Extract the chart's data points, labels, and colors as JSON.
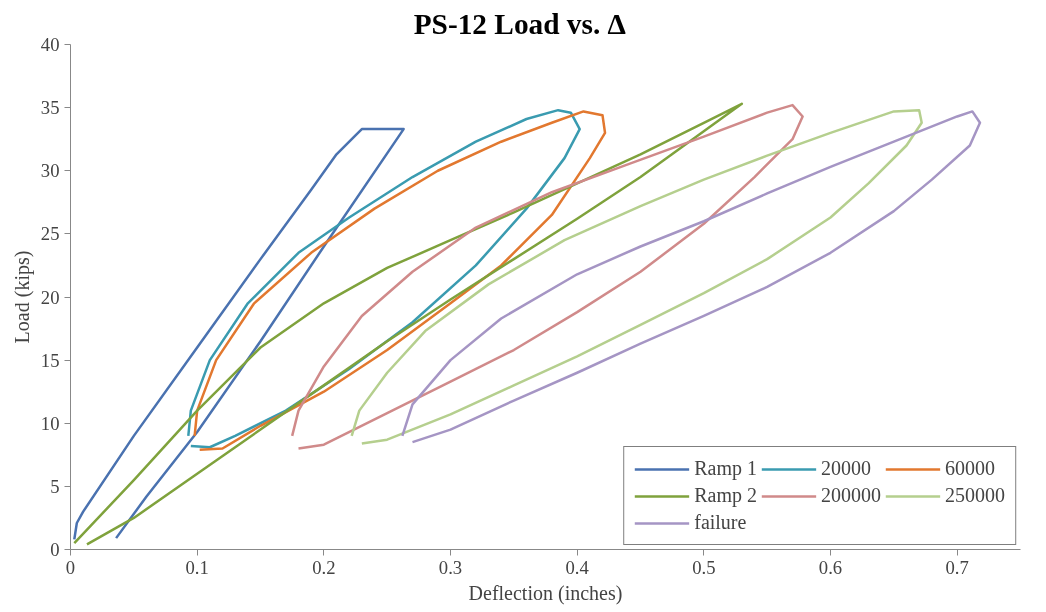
{
  "chart_data": {
    "type": "line",
    "title": "PS-12        Load vs. Δ",
    "xlabel": "Deflection (inches)",
    "ylabel": "Load (kips)",
    "xlim": [
      0,
      0.75
    ],
    "xticks": [
      0,
      0.1,
      0.2,
      0.3,
      0.4,
      0.5,
      0.6,
      0.7
    ],
    "ylim": [
      0,
      40
    ],
    "yticks": [
      0,
      5,
      10,
      15,
      20,
      25,
      30,
      35,
      40
    ],
    "grid": false,
    "legend": "bottom right",
    "series": [
      {
        "name": "Ramp 1",
        "color": "#4a72b0",
        "x": [
          0.003,
          0.005,
          0.01,
          0.05,
          0.1,
          0.15,
          0.19,
          0.21,
          0.225,
          0.23,
          0.245,
          0.263,
          0.2,
          0.15,
          0.1,
          0.06,
          0.036
        ],
        "values": [
          0.8,
          2.1,
          3,
          9,
          16,
          23,
          28.5,
          31.3,
          32.8,
          33.3,
          33.3,
          33.3,
          24,
          16.5,
          9.3,
          4.2,
          0.9
        ]
      },
      {
        "name": "20000",
        "color": "#3a9bb0",
        "x": [
          0.093,
          0.095,
          0.11,
          0.14,
          0.18,
          0.22,
          0.27,
          0.32,
          0.36,
          0.385,
          0.395,
          0.402,
          0.39,
          0.36,
          0.32,
          0.27,
          0.22,
          0.17,
          0.13,
          0.11,
          0.095
        ],
        "values": [
          9,
          11,
          15,
          19.5,
          23.5,
          26.3,
          29.5,
          32.3,
          34.1,
          34.8,
          34.6,
          33.3,
          31,
          27,
          22.5,
          18,
          14.3,
          11,
          9,
          8.1,
          8.2
        ]
      },
      {
        "name": "60000",
        "color": "#e2782f",
        "x": [
          0.098,
          0.1,
          0.115,
          0.145,
          0.19,
          0.24,
          0.29,
          0.34,
          0.38,
          0.405,
          0.42,
          0.422,
          0.41,
          0.38,
          0.34,
          0.3,
          0.25,
          0.2,
          0.15,
          0.12,
          0.102
        ],
        "values": [
          9,
          11,
          15,
          19.5,
          23.5,
          27,
          30,
          32.3,
          33.8,
          34.7,
          34.4,
          33,
          31,
          26.5,
          22.5,
          19.5,
          15.8,
          12.5,
          9.8,
          8,
          7.9
        ]
      },
      {
        "name": "Ramp 2",
        "color": "#7fa23c",
        "x": [
          0.003,
          0.05,
          0.1,
          0.15,
          0.2,
          0.25,
          0.3,
          0.35,
          0.4,
          0.45,
          0.5,
          0.53,
          0.45,
          0.4,
          0.35,
          0.3,
          0.25,
          0.2,
          0.15,
          0.1,
          0.05,
          0.013
        ],
        "values": [
          0.5,
          5.5,
          11,
          16,
          19.5,
          22.3,
          24.5,
          26.7,
          29,
          31.3,
          33.8,
          35.3,
          29.5,
          26.2,
          23,
          19.8,
          16.5,
          13,
          9.5,
          6,
          2.5,
          0.4
        ]
      },
      {
        "name": "200000",
        "color": "#d08a8a",
        "x": [
          0.175,
          0.18,
          0.2,
          0.23,
          0.27,
          0.32,
          0.38,
          0.44,
          0.5,
          0.55,
          0.57,
          0.578,
          0.57,
          0.54,
          0.5,
          0.45,
          0.4,
          0.35,
          0.3,
          0.25,
          0.2,
          0.18
        ],
        "values": [
          9,
          11,
          14.5,
          18.5,
          22,
          25.5,
          28.3,
          30.5,
          32.7,
          34.6,
          35.2,
          34.3,
          32.5,
          29.5,
          25.8,
          22,
          18.8,
          15.8,
          13.3,
          10.8,
          8.3,
          8
        ]
      },
      {
        "name": "250000",
        "color": "#b5cf8e",
        "x": [
          0.222,
          0.228,
          0.25,
          0.28,
          0.33,
          0.39,
          0.45,
          0.5,
          0.55,
          0.6,
          0.65,
          0.67,
          0.672,
          0.66,
          0.63,
          0.6,
          0.55,
          0.5,
          0.45,
          0.4,
          0.35,
          0.3,
          0.25,
          0.23
        ],
        "values": [
          9,
          11,
          14,
          17.3,
          21,
          24.5,
          27.2,
          29.3,
          31.2,
          33,
          34.7,
          34.8,
          33.8,
          32,
          29,
          26.3,
          23,
          20.3,
          17.8,
          15.3,
          13,
          10.7,
          8.7,
          8.4
        ]
      },
      {
        "name": "failure",
        "color": "#a595c4",
        "x": [
          0.262,
          0.27,
          0.3,
          0.34,
          0.4,
          0.45,
          0.5,
          0.55,
          0.6,
          0.65,
          0.7,
          0.712,
          0.718,
          0.71,
          0.68,
          0.65,
          0.6,
          0.55,
          0.5,
          0.45,
          0.4,
          0.35,
          0.3,
          0.27
        ],
        "values": [
          9,
          11.5,
          15,
          18.3,
          21.8,
          24,
          26,
          28.2,
          30.3,
          32.3,
          34.3,
          34.7,
          33.8,
          32,
          29.3,
          26.8,
          23.5,
          20.8,
          18.5,
          16.3,
          14,
          11.8,
          9.5,
          8.5
        ]
      }
    ]
  }
}
